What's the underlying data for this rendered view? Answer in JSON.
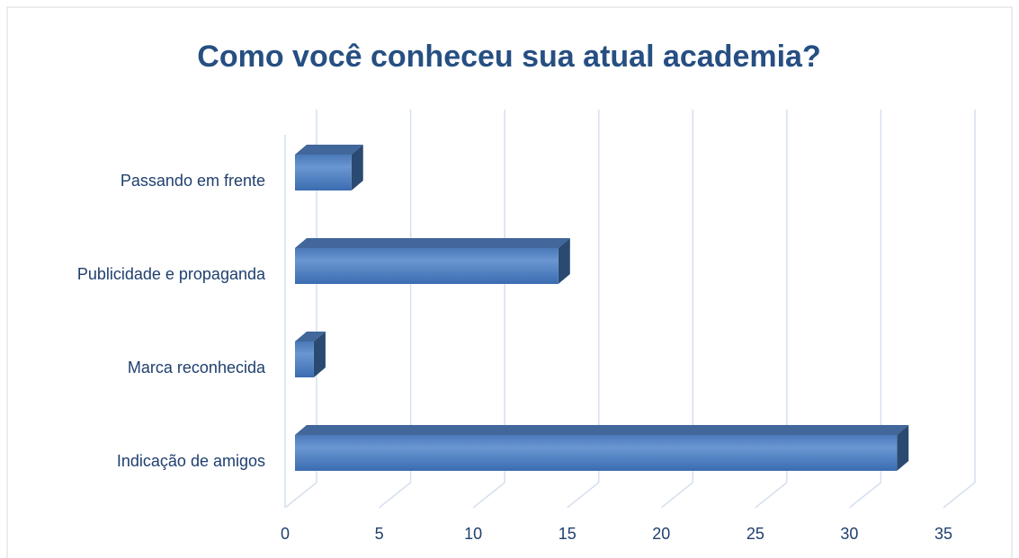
{
  "chart_data": {
    "type": "bar3d",
    "orientation": "horizontal",
    "title": "Como você conheceu sua atual academia?",
    "categories": [
      "Indicação de amigos",
      "Marca reconhecida",
      "Publicidade e propaganda",
      "Passando em frente"
    ],
    "values": [
      32,
      1,
      14,
      3
    ],
    "color": "#4f81bd",
    "xlim": [
      0,
      35
    ],
    "xticks": [
      0,
      5,
      10,
      15,
      20,
      25,
      30,
      35
    ],
    "grid": true
  }
}
